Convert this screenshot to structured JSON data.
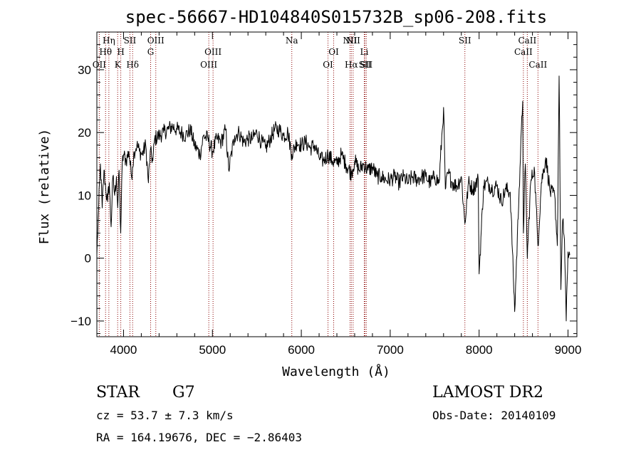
{
  "chart_data": {
    "type": "line",
    "title": "spec-56667-HD104840S015732B_sp06-208.fits",
    "xlabel": "Wavelength (Å)",
    "ylabel": "Flux (relative)",
    "xlim": [
      3700,
      9100
    ],
    "ylim": [
      -12.5,
      36
    ],
    "xticks": [
      4000,
      5000,
      6000,
      7000,
      8000,
      9000
    ],
    "yticks": [
      -10,
      0,
      10,
      20,
      30
    ],
    "series": [
      {
        "points": [
          [
            3700,
            0.5
          ],
          [
            3720,
            8
          ],
          [
            3740,
            15
          ],
          [
            3760,
            8
          ],
          [
            3780,
            14
          ],
          [
            3800,
            11
          ],
          [
            3820,
            9
          ],
          [
            3840,
            12
          ],
          [
            3860,
            5
          ],
          [
            3880,
            13
          ],
          [
            3900,
            10
          ],
          [
            3920,
            13
          ],
          [
            3935,
            8
          ],
          [
            3950,
            14
          ],
          [
            3968,
            4
          ],
          [
            3985,
            15
          ],
          [
            4000,
            16.5
          ],
          [
            4030,
            15.5
          ],
          [
            4060,
            17
          ],
          [
            4090,
            13
          ],
          [
            4101,
            14.5
          ],
          [
            4120,
            17
          ],
          [
            4150,
            18
          ],
          [
            4180,
            17
          ],
          [
            4210,
            16.5
          ],
          [
            4250,
            18
          ],
          [
            4280,
            12
          ],
          [
            4300,
            17
          ],
          [
            4330,
            15.5
          ],
          [
            4350,
            19
          ],
          [
            4400,
            19.5
          ],
          [
            4450,
            20
          ],
          [
            4500,
            20.5
          ],
          [
            4550,
            21
          ],
          [
            4600,
            20.5
          ],
          [
            4650,
            20
          ],
          [
            4700,
            19.5
          ],
          [
            4750,
            20.5
          ],
          [
            4800,
            18
          ],
          [
            4861,
            16.5
          ],
          [
            4900,
            19.5
          ],
          [
            4950,
            19
          ],
          [
            5000,
            17
          ],
          [
            5050,
            19
          ],
          [
            5100,
            18.5
          ],
          [
            5150,
            20.5
          ],
          [
            5183,
            14
          ],
          [
            5250,
            19.5
          ],
          [
            5300,
            20
          ],
          [
            5350,
            18.5
          ],
          [
            5400,
            19
          ],
          [
            5450,
            19
          ],
          [
            5500,
            20
          ],
          [
            5550,
            18.5
          ],
          [
            5600,
            17.5
          ],
          [
            5650,
            19
          ],
          [
            5700,
            20.5
          ],
          [
            5750,
            20.5
          ],
          [
            5800,
            19.5
          ],
          [
            5850,
            20
          ],
          [
            5893,
            16.5
          ],
          [
            5950,
            18.5
          ],
          [
            6000,
            18
          ],
          [
            6050,
            18.5
          ],
          [
            6100,
            17.5
          ],
          [
            6150,
            18
          ],
          [
            6200,
            16
          ],
          [
            6250,
            15.5
          ],
          [
            6300,
            16.5
          ],
          [
            6350,
            15.5
          ],
          [
            6400,
            15
          ],
          [
            6450,
            16.5
          ],
          [
            6500,
            15
          ],
          [
            6563,
            13.5
          ],
          [
            6600,
            15.5
          ],
          [
            6650,
            14
          ],
          [
            6700,
            15
          ],
          [
            6750,
            14
          ],
          [
            6800,
            14.5
          ],
          [
            6850,
            13
          ],
          [
            6900,
            13
          ],
          [
            6950,
            12.5
          ],
          [
            7000,
            12.5
          ],
          [
            7050,
            13
          ],
          [
            7100,
            12
          ],
          [
            7150,
            13
          ],
          [
            7200,
            12
          ],
          [
            7250,
            13
          ],
          [
            7300,
            12.5
          ],
          [
            7350,
            13
          ],
          [
            7400,
            13
          ],
          [
            7450,
            12
          ],
          [
            7500,
            13
          ],
          [
            7550,
            12
          ],
          [
            7600,
            24
          ],
          [
            7620,
            11
          ],
          [
            7650,
            13.5
          ],
          [
            7700,
            12
          ],
          [
            7750,
            11.5
          ],
          [
            7800,
            13
          ],
          [
            7840,
            5.5
          ],
          [
            7880,
            12
          ],
          [
            7930,
            11
          ],
          [
            7990,
            12.5
          ],
          [
            8000,
            -2.5
          ],
          [
            8050,
            11.5
          ],
          [
            8100,
            12
          ],
          [
            8150,
            11
          ],
          [
            8200,
            11.5
          ],
          [
            8250,
            9
          ],
          [
            8300,
            11
          ],
          [
            8350,
            10.5
          ],
          [
            8400,
            -8.5
          ],
          [
            8450,
            11
          ],
          [
            8490,
            25
          ],
          [
            8498,
            4
          ],
          [
            8520,
            15
          ],
          [
            8542,
            0
          ],
          [
            8580,
            12
          ],
          [
            8620,
            14.5
          ],
          [
            8662,
            2
          ],
          [
            8700,
            12
          ],
          [
            8750,
            16
          ],
          [
            8800,
            10.5
          ],
          [
            8850,
            10
          ],
          [
            8880,
            2
          ],
          [
            8900,
            29
          ],
          [
            8920,
            -5
          ],
          [
            8940,
            6
          ],
          [
            8960,
            3
          ],
          [
            8980,
            -10
          ],
          [
            9000,
            1
          ],
          [
            9020,
            0.5
          ]
        ]
      }
    ],
    "spectral_lines": [
      {
        "label": "OII",
        "x": 3727,
        "row": 3
      },
      {
        "label": "Hθ",
        "x": 3798,
        "row": 2
      },
      {
        "label": "Hη",
        "x": 3835,
        "row": 1
      },
      {
        "label": "K",
        "x": 3934,
        "row": 3
      },
      {
        "label": "H",
        "x": 3969,
        "row": 2
      },
      {
        "label": "SII",
        "x": 4072,
        "row": 1
      },
      {
        "label": "Hδ",
        "x": 4102,
        "row": 3
      },
      {
        "label": "G",
        "x": 4305,
        "row": 2
      },
      {
        "label": "OIII",
        "x": 4363,
        "row": 1
      },
      {
        "label": "OIII",
        "x": 4959,
        "row": 3
      },
      {
        "label": "OIII",
        "x": 5007,
        "row": 2
      },
      {
        "label": "Na",
        "x": 5893,
        "row": 1
      },
      {
        "label": "OI",
        "x": 6300,
        "row": 3
      },
      {
        "label": "OI",
        "x": 6364,
        "row": 2
      },
      {
        "label": "NII",
        "x": 6548,
        "row": 1
      },
      {
        "label": "Hα",
        "x": 6563,
        "row": 3
      },
      {
        "label": "NII",
        "x": 6583,
        "row": 1
      },
      {
        "label": "Li",
        "x": 6708,
        "row": 2
      },
      {
        "label": "SII",
        "x": 6716,
        "row": 3
      },
      {
        "label": "SII",
        "x": 6731,
        "row": 3
      },
      {
        "label": "SII",
        "x": 7840,
        "row": 1
      },
      {
        "label": "CaII",
        "x": 8498,
        "row": 2
      },
      {
        "label": "CaII",
        "x": 8542,
        "row": 1
      },
      {
        "label": "CaII",
        "x": 8662,
        "row": 3
      }
    ],
    "grid": false
  },
  "info": {
    "object_class": "STAR",
    "subclass": "G7",
    "survey": "LAMOST DR2",
    "cz": "cz = 53.7 ± 7.3 km/s",
    "obs_date": "Obs-Date: 20140109",
    "coords": "RA = 164.19676, DEC =  −2.86403"
  },
  "colors": {
    "spectrum": "#000000",
    "line_markers": "#8b0000",
    "axes": "#000000",
    "background": "#ffffff"
  }
}
